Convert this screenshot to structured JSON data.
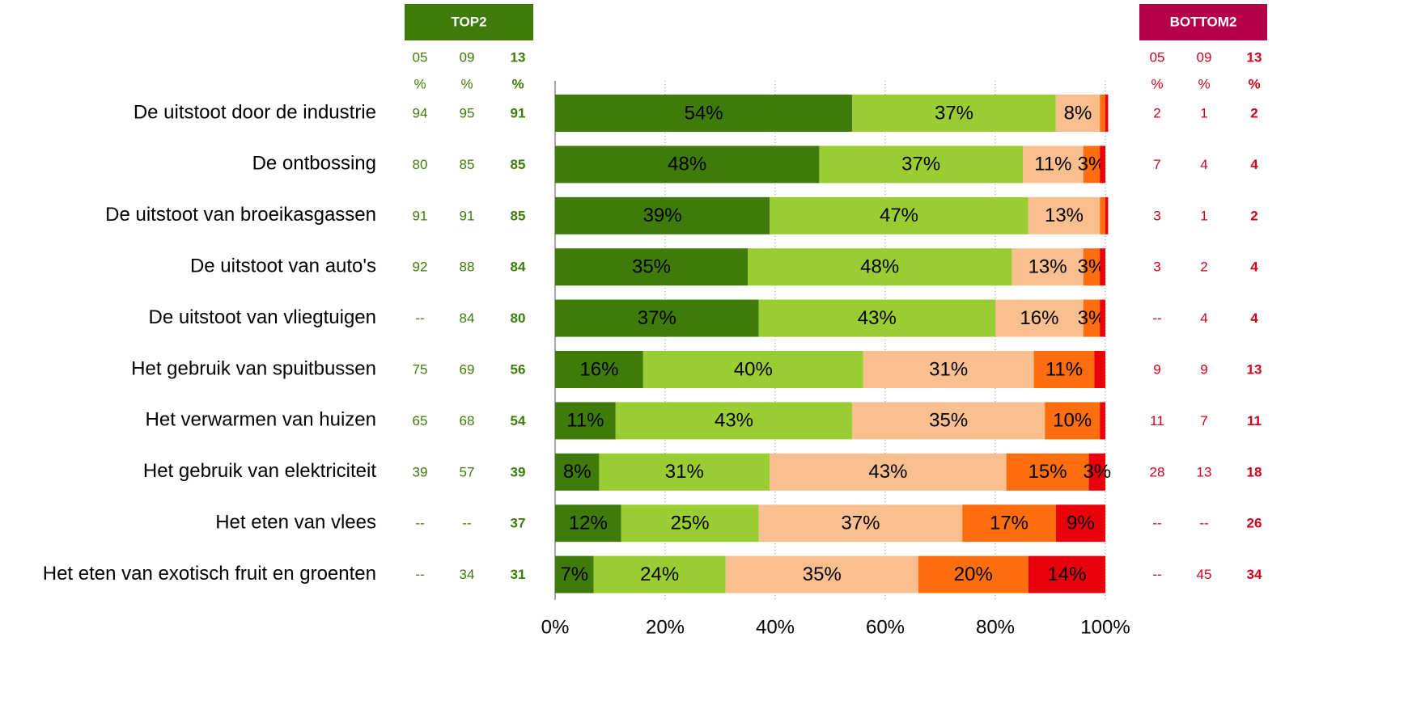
{
  "chart_data": {
    "type": "stacked_bar_horizontal",
    "categories": [
      "De uitstoot door de industrie",
      "De ontbossing",
      "De uitstoot van broeikasgassen",
      "De uitstoot van auto's",
      "De uitstoot van vliegtuigen",
      "Het gebruik van spuitbussen",
      "Het verwarmen van huizen",
      "Het gebruik van elektriciteit",
      "Het eten van vlees",
      "Het eten van exotisch fruit en groenten"
    ],
    "series": [
      {
        "color": "#3e7b0a",
        "values": [
          54,
          48,
          39,
          35,
          37,
          16,
          11,
          8,
          12,
          7
        ],
        "value_labels": [
          "54%",
          "48%",
          "39%",
          "35%",
          "37%",
          "16%",
          "11%",
          "8%",
          "12%",
          "7%"
        ]
      },
      {
        "color": "#9acd32",
        "values": [
          37,
          37,
          47,
          48,
          43,
          40,
          43,
          31,
          25,
          24
        ],
        "value_labels": [
          "37%",
          "37%",
          "47%",
          "48%",
          "43%",
          "40%",
          "43%",
          "31%",
          "25%",
          "24%"
        ]
      },
      {
        "color": "#f9bf8f",
        "values": [
          8,
          11,
          13,
          13,
          16,
          31,
          35,
          43,
          37,
          35
        ],
        "value_labels": [
          "8%",
          "11%",
          "13%",
          "13%",
          "16%",
          "31%",
          "35%",
          "43%",
          "37%",
          "35%"
        ]
      },
      {
        "color": "#ff6e0e",
        "values": [
          1,
          3,
          1,
          3,
          3,
          11,
          10,
          15,
          17,
          20
        ],
        "value_labels": [
          null,
          "3%",
          null,
          "3%",
          "3%",
          "11%",
          "10%",
          "15%",
          "17%",
          "20%"
        ]
      },
      {
        "color": "#e8000b",
        "values": [
          0.5,
          1,
          0.5,
          1,
          1,
          2,
          1,
          3,
          9,
          14
        ],
        "value_labels": [
          null,
          null,
          null,
          null,
          null,
          null,
          null,
          "3%",
          "9%",
          "14%"
        ]
      }
    ],
    "xlim": [
      0,
      100
    ],
    "xticks": [
      {
        "value": 0,
        "label": "0%"
      },
      {
        "value": 20,
        "label": "20%"
      },
      {
        "value": 40,
        "label": "40%"
      },
      {
        "value": 60,
        "label": "60%"
      },
      {
        "value": 80,
        "label": "80%"
      },
      {
        "value": 100,
        "label": "100%"
      }
    ],
    "grid": true,
    "top2": {
      "title": "TOP2",
      "color": "#3e7b0a",
      "columns": [
        "05",
        "09",
        "13"
      ],
      "unit": "%",
      "rows": [
        [
          94,
          95,
          91
        ],
        [
          80,
          85,
          85
        ],
        [
          91,
          91,
          85
        ],
        [
          92,
          88,
          84
        ],
        [
          "--",
          84,
          80
        ],
        [
          75,
          69,
          56
        ],
        [
          65,
          68,
          54
        ],
        [
          39,
          57,
          39
        ],
        [
          "--",
          "--",
          37
        ],
        [
          "--",
          34,
          31
        ]
      ]
    },
    "bottom2": {
      "title": "BOTTOM2",
      "color": "#b5004b",
      "text_color": "#d0021b",
      "columns": [
        "05",
        "09",
        "13"
      ],
      "unit": "%",
      "rows": [
        [
          2,
          1,
          2
        ],
        [
          7,
          4,
          4
        ],
        [
          3,
          1,
          2
        ],
        [
          3,
          2,
          4
        ],
        [
          "--",
          4,
          4
        ],
        [
          9,
          9,
          13
        ],
        [
          11,
          7,
          11
        ],
        [
          28,
          13,
          18
        ],
        [
          "--",
          "--",
          26
        ],
        [
          "--",
          45,
          34
        ]
      ]
    }
  }
}
